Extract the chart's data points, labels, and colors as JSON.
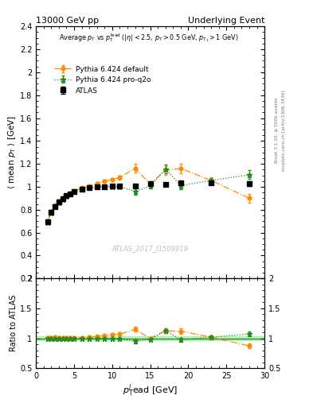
{
  "title_left": "13000 GeV pp",
  "title_right": "Underlying Event",
  "xlabel": "$p_\\mathrm{T}^{l}$ead [GeV]",
  "ylabel_main": "$\\langle$ mean $p_\\mathrm{T}$ $\\rangle$ [GeV]",
  "ylabel_ratio": "Ratio to ATLAS",
  "annotation_line1": "Average $p_\\mathrm{T}$ vs $p_\\mathrm{T}^{\\mathrm{lead}}$ ($|\\eta| < 2.5$, $p_\\mathrm{T} > 0.5$ GeV, $p_{T_1} > 1$ GeV)",
  "watermark": "ATLAS_2017_I1509919",
  "right_label": "mcplots.cern.ch [arXiv:1306.3436]",
  "rivet_label": "Rivet 3.1.10, ≥ 500k events",
  "ylim_main": [
    0.2,
    2.4
  ],
  "ylim_ratio": [
    0.5,
    2.0
  ],
  "xlim": [
    0,
    30
  ],
  "atlas_x": [
    1.5,
    2.0,
    2.5,
    3.0,
    3.5,
    4.0,
    4.5,
    5.0,
    6.0,
    7.0,
    8.0,
    9.0,
    10.0,
    11.0,
    13.0,
    15.0,
    17.0,
    19.0,
    23.0,
    28.0
  ],
  "atlas_y": [
    0.693,
    0.775,
    0.825,
    0.865,
    0.895,
    0.92,
    0.94,
    0.958,
    0.978,
    0.99,
    0.998,
    1.003,
    1.005,
    1.01,
    1.01,
    1.025,
    1.02,
    1.035,
    1.035,
    1.03
  ],
  "atlas_yerr": [
    0.015,
    0.012,
    0.01,
    0.009,
    0.008,
    0.007,
    0.007,
    0.006,
    0.005,
    0.005,
    0.005,
    0.005,
    0.007,
    0.01,
    0.01,
    0.012,
    0.012,
    0.015,
    0.015,
    0.02
  ],
  "pythia_def_x": [
    1.5,
    2.0,
    2.5,
    3.0,
    3.5,
    4.0,
    4.5,
    5.0,
    6.0,
    7.0,
    8.0,
    9.0,
    10.0,
    11.0,
    13.0,
    15.0,
    17.0,
    19.0,
    23.0,
    28.0
  ],
  "pythia_def_y": [
    0.7,
    0.785,
    0.838,
    0.875,
    0.903,
    0.925,
    0.945,
    0.963,
    0.99,
    1.005,
    1.03,
    1.05,
    1.065,
    1.08,
    1.16,
    1.025,
    1.145,
    1.16,
    1.055,
    0.9
  ],
  "pythia_def_yerr": [
    0.01,
    0.008,
    0.007,
    0.006,
    0.005,
    0.005,
    0.004,
    0.004,
    0.004,
    0.006,
    0.008,
    0.01,
    0.012,
    0.018,
    0.038,
    0.022,
    0.038,
    0.042,
    0.028,
    0.038
  ],
  "pythia_q2o_x": [
    1.5,
    2.0,
    2.5,
    3.0,
    3.5,
    4.0,
    4.5,
    5.0,
    6.0,
    7.0,
    8.0,
    9.0,
    10.0,
    11.0,
    13.0,
    15.0,
    17.0,
    19.0,
    23.0,
    28.0
  ],
  "pythia_q2o_y": [
    0.69,
    0.773,
    0.825,
    0.862,
    0.892,
    0.918,
    0.938,
    0.956,
    0.978,
    0.99,
    0.998,
    1.002,
    1.003,
    1.002,
    0.96,
    1.005,
    1.155,
    1.01,
    1.055,
    1.105
  ],
  "pythia_q2o_yerr": [
    0.01,
    0.008,
    0.007,
    0.006,
    0.005,
    0.004,
    0.004,
    0.004,
    0.003,
    0.005,
    0.007,
    0.009,
    0.011,
    0.016,
    0.028,
    0.018,
    0.038,
    0.028,
    0.023,
    0.038
  ],
  "atlas_color": "#000000",
  "pythia_def_color": "#FF8C00",
  "pythia_q2o_color": "#228B22",
  "ratio_band_color": "#90EE90"
}
